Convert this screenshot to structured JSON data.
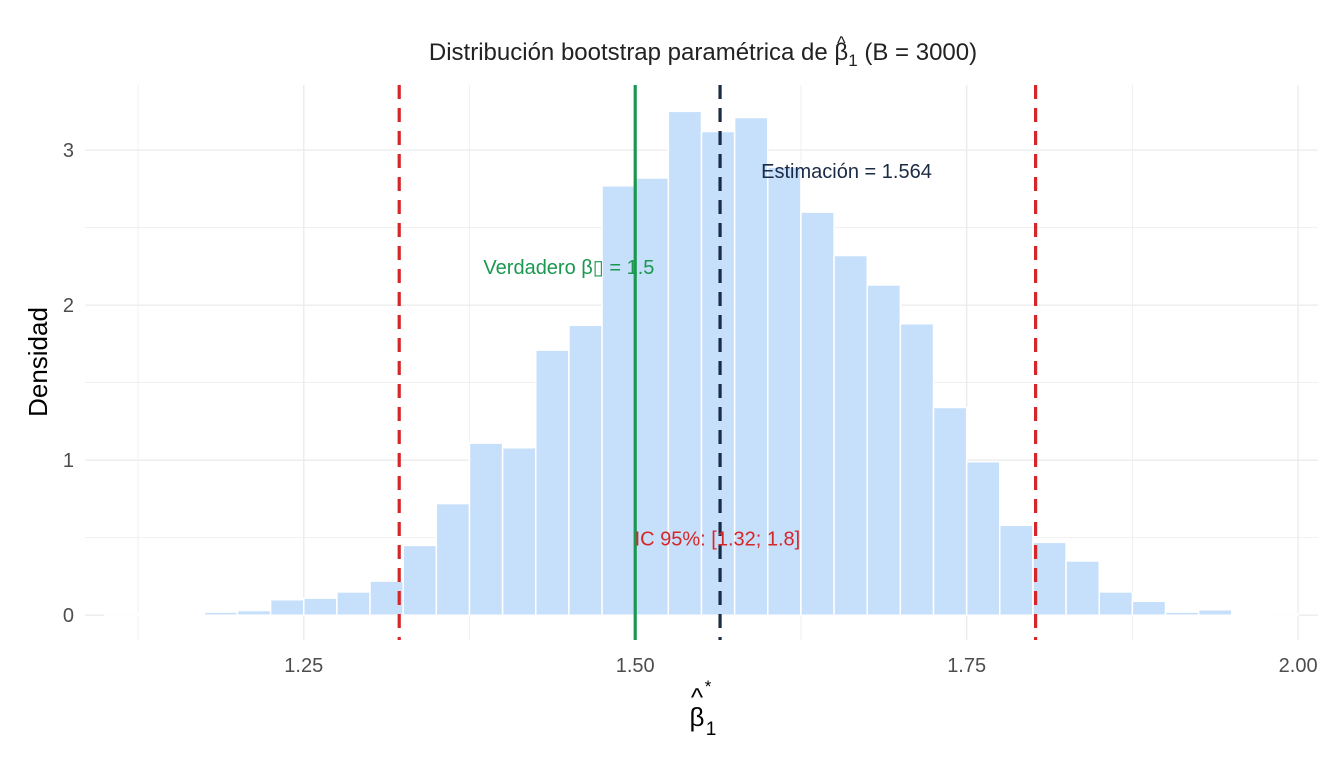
{
  "chart_data": {
    "type": "histogram",
    "title": {
      "prefix": "Distribución bootstrap paramétrica de ",
      "symbol": "β",
      "symbol_hat": "^",
      "subscript": "1",
      "suffix": " (B = 3000)"
    },
    "xlabel": {
      "symbol": "β",
      "hat": "^",
      "subscript": "1",
      "superscript": "*"
    },
    "ylabel": "Densidad",
    "xlim": [
      1.085,
      2.015
    ],
    "ylim": [
      -0.16,
      3.42
    ],
    "x_ticks": [
      1.25,
      1.5,
      1.75,
      2.0
    ],
    "x_tick_labels": [
      "1.25",
      "1.50",
      "1.75",
      "2.00"
    ],
    "y_ticks": [
      0,
      1,
      2,
      3
    ],
    "y_tick_labels": [
      "0",
      "1",
      "2",
      "3"
    ],
    "grid": true,
    "bin_width": 0.025,
    "bins_start": 1.1,
    "densities": [
      0.01,
      0.0,
      0.003,
      0.02,
      0.03,
      0.1,
      0.11,
      0.15,
      0.22,
      0.45,
      0.72,
      1.11,
      1.08,
      1.71,
      1.87,
      2.77,
      2.82,
      3.25,
      3.12,
      3.21,
      2.89,
      2.6,
      2.32,
      2.13,
      1.88,
      1.34,
      0.99,
      0.58,
      0.47,
      0.35,
      0.15,
      0.09,
      0.02,
      0.035,
      0.003,
      0.01
    ],
    "reference_lines": [
      {
        "name": "ci-lower",
        "x": 1.322,
        "style": "dashed",
        "color": "#d62728"
      },
      {
        "name": "ci-upper",
        "x": 1.802,
        "style": "dashed",
        "color": "#d62728"
      },
      {
        "name": "true-beta",
        "x": 1.5,
        "style": "solid",
        "color": "#1a9850"
      },
      {
        "name": "estimate",
        "x": 1.564,
        "style": "dashed",
        "color": "#1b2a45"
      }
    ],
    "annotations": [
      {
        "name": "estimate-label",
        "text": "Estimación = 1.564",
        "x": 1.595,
        "y": 2.82,
        "anchor": "start",
        "color": "#1b2a45"
      },
      {
        "name": "true-beta-label",
        "text": "Verdadero β▯ = 1.5",
        "x": 1.45,
        "y": 2.2,
        "anchor": "middle",
        "color": "#1a9850"
      },
      {
        "name": "ci-label",
        "text": "IC 95%: [1.32; 1.8]",
        "x": 1.562,
        "y": 0.45,
        "anchor": "middle",
        "color": "#d62728"
      }
    ],
    "colors": {
      "bar_fill": "#c6dffb",
      "bar_stroke": "#ffffff",
      "grid": "#ebebeb"
    }
  }
}
